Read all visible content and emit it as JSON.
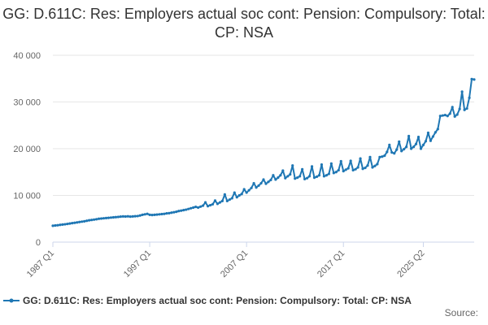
{
  "title": "GG: D.611C: Res: Employers actual soc cont: Pension: Compulsory: Total: CP: NSA",
  "source_label": "Source:",
  "colors": {
    "series": "#1f77b4",
    "grid": "#e6e6e6",
    "axis": "#ccd6eb",
    "text": "#333333"
  },
  "chart_data": {
    "type": "line",
    "title": "GG: D.611C: Res: Employers actual soc cont: Pension: Compulsory: Total: CP: NSA",
    "xlabel": "",
    "ylabel": "",
    "ylim": [
      0,
      40000
    ],
    "yticks": [
      0,
      10000,
      20000,
      30000,
      40000
    ],
    "ytick_labels": [
      "0",
      "10 000",
      "20 000",
      "30 000",
      "40 000"
    ],
    "xticks": [
      "1987 Q1",
      "1997 Q1",
      "2007 Q1",
      "2017 Q1",
      "2025 Q2"
    ],
    "grid": true,
    "legend": "bottom",
    "series": [
      {
        "name": "GG: D.611C: Res: Employers actual soc cont: Pension: Compulsory: Total: CP: NSA",
        "x_start": "1987 Q1",
        "frequency": "quarterly",
        "values": [
          3500,
          3560,
          3620,
          3700,
          3760,
          3820,
          3900,
          3980,
          4060,
          4140,
          4220,
          4300,
          4380,
          4460,
          4560,
          4680,
          4750,
          4820,
          4900,
          5000,
          5050,
          5100,
          5150,
          5200,
          5250,
          5300,
          5350,
          5400,
          5450,
          5500,
          5480,
          5520,
          5460,
          5500,
          5540,
          5580,
          5700,
          5850,
          5950,
          6050,
          5850,
          5800,
          5850,
          5900,
          5950,
          6000,
          6050,
          6150,
          6200,
          6300,
          6400,
          6500,
          6650,
          6750,
          6850,
          6950,
          7100,
          7250,
          7400,
          7550,
          7400,
          7600,
          7800,
          8500,
          7700,
          7900,
          8100,
          8900,
          8200,
          8500,
          8800,
          10200,
          8800,
          9100,
          9400,
          10600,
          9600,
          10000,
          10300,
          11300,
          10600,
          11100,
          11600,
          12600,
          11700,
          12100,
          12600,
          13400,
          12500,
          12900,
          13300,
          14300,
          13400,
          13800,
          14300,
          15300,
          13700,
          14100,
          14500,
          16400,
          13600,
          13800,
          14100,
          15600,
          13500,
          13700,
          14100,
          16200,
          13800,
          14000,
          14300,
          16600,
          14100,
          14300,
          14600,
          16800,
          14800,
          15000,
          15400,
          17300,
          15200,
          15500,
          15800,
          17400,
          15400,
          15600,
          16000,
          17900,
          15700,
          15900,
          16400,
          18200,
          16000,
          16300,
          16700,
          18200,
          18300,
          18500,
          19300,
          20800,
          19200,
          19000,
          19800,
          21500,
          19500,
          19900,
          20400,
          22700,
          20000,
          20400,
          21000,
          22500,
          20000,
          20800,
          21600,
          23400,
          21700,
          22600,
          23500,
          24200,
          27000,
          27100,
          27200,
          27000,
          27500,
          28900,
          26900,
          27300,
          28500,
          32200,
          28300,
          28600,
          30900,
          34900,
          34800
        ]
      }
    ]
  }
}
